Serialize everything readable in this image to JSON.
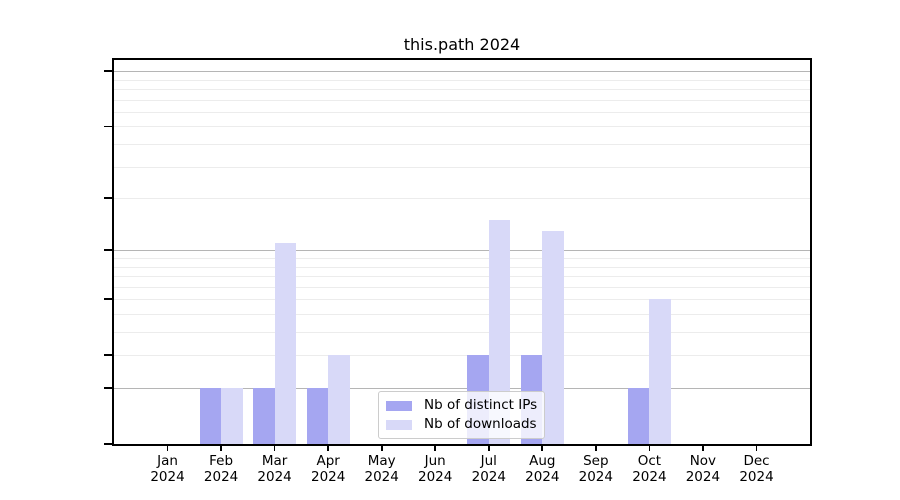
{
  "chart_data": {
    "type": "bar",
    "title": "this.path 2024",
    "categories": [
      "Jan",
      "Feb",
      "Mar",
      "Apr",
      "May",
      "Jun",
      "Jul",
      "Aug",
      "Sep",
      "Oct",
      "Nov",
      "Dec"
    ],
    "category_year": "2024",
    "series": [
      {
        "name": "Nb of distinct IPs",
        "color": "#a5a6f1",
        "values": [
          0,
          1,
          1,
          1,
          0,
          0,
          2,
          2,
          0,
          1,
          0,
          0
        ]
      },
      {
        "name": "Nb of downloads",
        "color": "#d8d9f8",
        "values": [
          0,
          1,
          11,
          2,
          0,
          0,
          15,
          13,
          0,
          5,
          0,
          0
        ]
      }
    ],
    "y_axis": {
      "scale": "log1p",
      "ticks": [
        100,
        50,
        20,
        10,
        5,
        2,
        1,
        0
      ],
      "major_gridlines": [
        1,
        10,
        100
      ],
      "minor_gridlines": [
        2,
        3,
        4,
        5,
        6,
        7,
        8,
        9,
        20,
        30,
        40,
        50,
        60,
        70,
        80,
        90
      ],
      "max": 115,
      "min": 0
    },
    "x_axis": {
      "tick_label_lines": 2
    },
    "legend": {
      "position": "bottom-center"
    },
    "grid": true
  },
  "colors": {
    "bar_distinct_ips": "#a5a6f1",
    "bar_downloads": "#d8d9f8",
    "major_grid": "#b5b5b5",
    "minor_grid": "#ececec",
    "axis": "#000000",
    "legend_border": "#cccccc"
  }
}
